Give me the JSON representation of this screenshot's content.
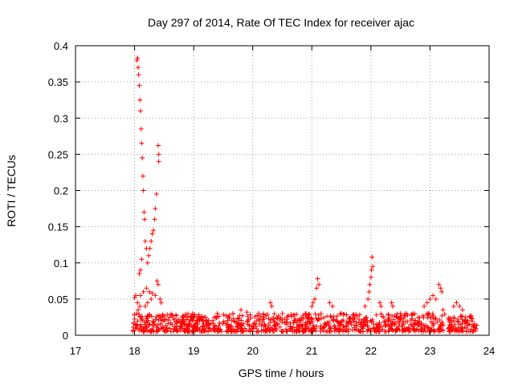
{
  "chart_data": {
    "type": "scatter",
    "title": "Day 297 of 2014, Rate Of TEC Index for receiver ajac",
    "xlabel": "GPS time / hours",
    "ylabel": "ROTI / TECUs",
    "xlim": [
      17,
      24
    ],
    "ylim": [
      0,
      0.4
    ],
    "xticks": [
      "17",
      "18",
      "19",
      "20",
      "21",
      "22",
      "23",
      "24"
    ],
    "yticks": [
      "0",
      "0.05",
      "0.1",
      "0.15",
      "0.2",
      "0.25",
      "0.3",
      "0.35",
      "0.4"
    ],
    "grid": true,
    "marker": "+",
    "color": "#ff0000",
    "series": [
      {
        "name": "ROTI",
        "points": [
          [
            18.0,
            0.052
          ],
          [
            18.02,
            0.055
          ],
          [
            18.04,
            0.38
          ],
          [
            18.05,
            0.383
          ],
          [
            18.06,
            0.37
          ],
          [
            18.07,
            0.36
          ],
          [
            18.08,
            0.345
          ],
          [
            18.09,
            0.325
          ],
          [
            18.1,
            0.31
          ],
          [
            18.11,
            0.285
          ],
          [
            18.12,
            0.265
          ],
          [
            18.13,
            0.245
          ],
          [
            18.14,
            0.22
          ],
          [
            18.15,
            0.2
          ],
          [
            18.16,
            0.17
          ],
          [
            18.17,
            0.16
          ],
          [
            18.18,
            0.13
          ],
          [
            18.2,
            0.12
          ],
          [
            18.22,
            0.1
          ],
          [
            18.08,
            0.085
          ],
          [
            18.1,
            0.09
          ],
          [
            18.12,
            0.105
          ],
          [
            18.24,
            0.11
          ],
          [
            18.26,
            0.12
          ],
          [
            18.28,
            0.13
          ],
          [
            18.3,
            0.14
          ],
          [
            18.32,
            0.145
          ],
          [
            18.34,
            0.16
          ],
          [
            18.35,
            0.175
          ],
          [
            18.37,
            0.195
          ],
          [
            18.4,
            0.262
          ],
          [
            18.41,
            0.25
          ],
          [
            18.41,
            0.24
          ],
          [
            18.38,
            0.075
          ],
          [
            18.4,
            0.07
          ],
          [
            18.43,
            0.05
          ],
          [
            18.45,
            0.045
          ],
          [
            18.05,
            0.045
          ],
          [
            18.1,
            0.055
          ],
          [
            18.15,
            0.06
          ],
          [
            18.2,
            0.065
          ],
          [
            18.25,
            0.06
          ],
          [
            18.3,
            0.058
          ],
          [
            18.35,
            0.055
          ],
          [
            18.03,
            0.03
          ],
          [
            18.06,
            0.035
          ],
          [
            18.09,
            0.04
          ],
          [
            18.18,
            0.04
          ],
          [
            18.22,
            0.045
          ],
          [
            18.28,
            0.05
          ],
          [
            20.3,
            0.045
          ],
          [
            20.32,
            0.04
          ],
          [
            21.05,
            0.05
          ],
          [
            21.08,
            0.065
          ],
          [
            21.1,
            0.078
          ],
          [
            21.12,
            0.07
          ],
          [
            21.0,
            0.04
          ],
          [
            21.02,
            0.045
          ],
          [
            21.3,
            0.045
          ],
          [
            21.35,
            0.04
          ],
          [
            21.95,
            0.05
          ],
          [
            21.97,
            0.06
          ],
          [
            21.98,
            0.07
          ],
          [
            22.0,
            0.08
          ],
          [
            22.01,
            0.09
          ],
          [
            22.02,
            0.108
          ],
          [
            22.03,
            0.095
          ],
          [
            21.9,
            0.04
          ],
          [
            22.15,
            0.045
          ],
          [
            22.17,
            0.04
          ],
          [
            22.35,
            0.045
          ],
          [
            22.37,
            0.04
          ],
          [
            22.9,
            0.04
          ],
          [
            22.95,
            0.045
          ],
          [
            23.0,
            0.05
          ],
          [
            23.05,
            0.055
          ],
          [
            23.1,
            0.05
          ],
          [
            23.15,
            0.07
          ],
          [
            23.18,
            0.065
          ],
          [
            23.2,
            0.06
          ],
          [
            23.4,
            0.04
          ],
          [
            23.45,
            0.045
          ],
          [
            23.5,
            0.04
          ],
          [
            23.55,
            0.035
          ],
          [
            23.22,
            0.035
          ],
          [
            19.4,
            0.03
          ],
          [
            19.6,
            0.028
          ],
          [
            19.8,
            0.035
          ],
          [
            19.9,
            0.032
          ],
          [
            20.1,
            0.03
          ],
          [
            20.5,
            0.03
          ],
          [
            20.7,
            0.028
          ],
          [
            20.9,
            0.03
          ],
          [
            21.5,
            0.03
          ],
          [
            21.7,
            0.028
          ],
          [
            22.5,
            0.03
          ],
          [
            22.7,
            0.028
          ],
          [
            18.7,
            0.028
          ],
          [
            18.9,
            0.025
          ],
          [
            19.2,
            0.025
          ]
        ],
        "dense_band": [
          {
            "x0": 17.97,
            "x1": 23.25,
            "low": 0.005,
            "high": 0.03
          },
          {
            "x0": 23.3,
            "x1": 23.8,
            "low": 0.005,
            "high": 0.028
          }
        ]
      }
    ]
  }
}
